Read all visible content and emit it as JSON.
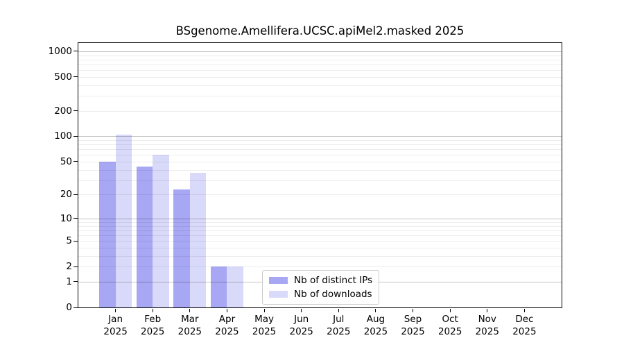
{
  "chart_data": {
    "type": "bar",
    "title": "BSgenome.Amellifera.UCSC.apiMel2.masked 2025",
    "xlabel": "",
    "ylabel": "",
    "categories": [
      "Jan 2025",
      "Feb 2025",
      "Mar 2025",
      "Apr 2025",
      "May 2025",
      "Jun 2025",
      "Jul 2025",
      "Aug 2025",
      "Sep 2025",
      "Oct 2025",
      "Nov 2025",
      "Dec 2025"
    ],
    "series": [
      {
        "name": "Nb of distinct IPs",
        "color": "#a7a7f3",
        "values": [
          50,
          44,
          23,
          2,
          0,
          0,
          0,
          0,
          0,
          0,
          0,
          0
        ]
      },
      {
        "name": "Nb of downloads",
        "color": "#d9d9f9",
        "values": [
          104,
          61,
          37,
          2,
          0,
          0,
          0,
          0,
          0,
          0,
          0,
          0
        ]
      }
    ],
    "yscale": "log1p",
    "ylim": [
      0,
      1250
    ],
    "ytick_values": [
      1000,
      500,
      200,
      100,
      50,
      20,
      10,
      5,
      2,
      1,
      0
    ],
    "grid": {
      "major": [
        1,
        10,
        100,
        1000
      ],
      "minor": [
        2,
        3,
        4,
        5,
        6,
        7,
        8,
        9,
        20,
        30,
        40,
        50,
        60,
        70,
        80,
        90,
        200,
        300,
        400,
        500,
        600,
        700,
        800,
        900
      ]
    },
    "legend_position": "lower center"
  }
}
